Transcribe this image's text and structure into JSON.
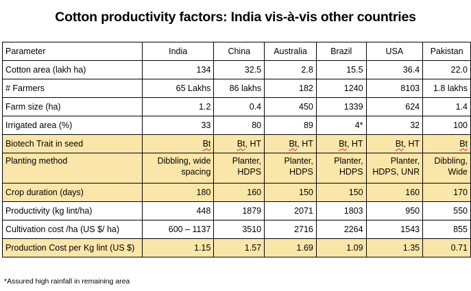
{
  "title": "Cotton productivity factors: India vis-à-vis other countries",
  "table": {
    "header": [
      "Parameter",
      "India",
      "China",
      "Australia",
      "Brazil",
      "USA",
      "Pakistan"
    ],
    "rows": [
      {
        "label": "Cotton area (lakh ha)",
        "values": [
          "134",
          "32.5",
          "2.8",
          "15.5",
          "36.4",
          "22.0"
        ],
        "highlight": false
      },
      {
        "label": "# Farmers",
        "values": [
          "65 Lakhs",
          "86 lakhs",
          "182",
          "1240",
          "8103",
          "1.8 lakhs"
        ],
        "highlight": false
      },
      {
        "label": "Farm size (ha)",
        "values": [
          "1.2",
          "0.4",
          "450",
          "1339",
          "624",
          "1.4"
        ],
        "highlight": false
      },
      {
        "label": "Irrigated area (%)",
        "values": [
          "33",
          "80",
          "89",
          "4*",
          "32",
          "100"
        ],
        "highlight": false
      },
      {
        "label": "Biotech Trait in seed",
        "values": [
          "Bt",
          "Bt, HT",
          "Bt, HT",
          "Bt, HT",
          "Bt, HT",
          "Bt"
        ],
        "highlight": true
      },
      {
        "label": "Planting method",
        "values": [
          "Dibbling, wide spacing",
          "Planter, HDPS",
          "Planter, HDPS",
          "Planter, HDPS",
          "Planter, HDPS, UNR",
          "Dibbling, Wide"
        ],
        "highlight": true
      },
      {
        "label": "Crop duration (days)",
        "values": [
          "180",
          "160",
          "150",
          "150",
          "160",
          "170"
        ],
        "highlight": true
      },
      {
        "label": "Productivity (kg lint/ha)",
        "values": [
          "448",
          "1879",
          "2071",
          "1803",
          "950",
          "550"
        ],
        "highlight": false
      },
      {
        "label": "Cultivation cost /ha (US $/ ha)",
        "values": [
          "600 – 1137",
          "3510",
          "2716",
          "2264",
          "1543",
          "855"
        ],
        "highlight": false
      },
      {
        "label": "Production Cost per Kg lint (US $)",
        "values": [
          "1.15",
          "1.57",
          "1.69",
          "1.09",
          "1.35",
          "0.71"
        ],
        "highlight": true
      }
    ]
  },
  "footnote": "*Assured high rainfall in remaining area",
  "colors": {
    "highlight": "#fbe6aa",
    "border": "#000000"
  }
}
